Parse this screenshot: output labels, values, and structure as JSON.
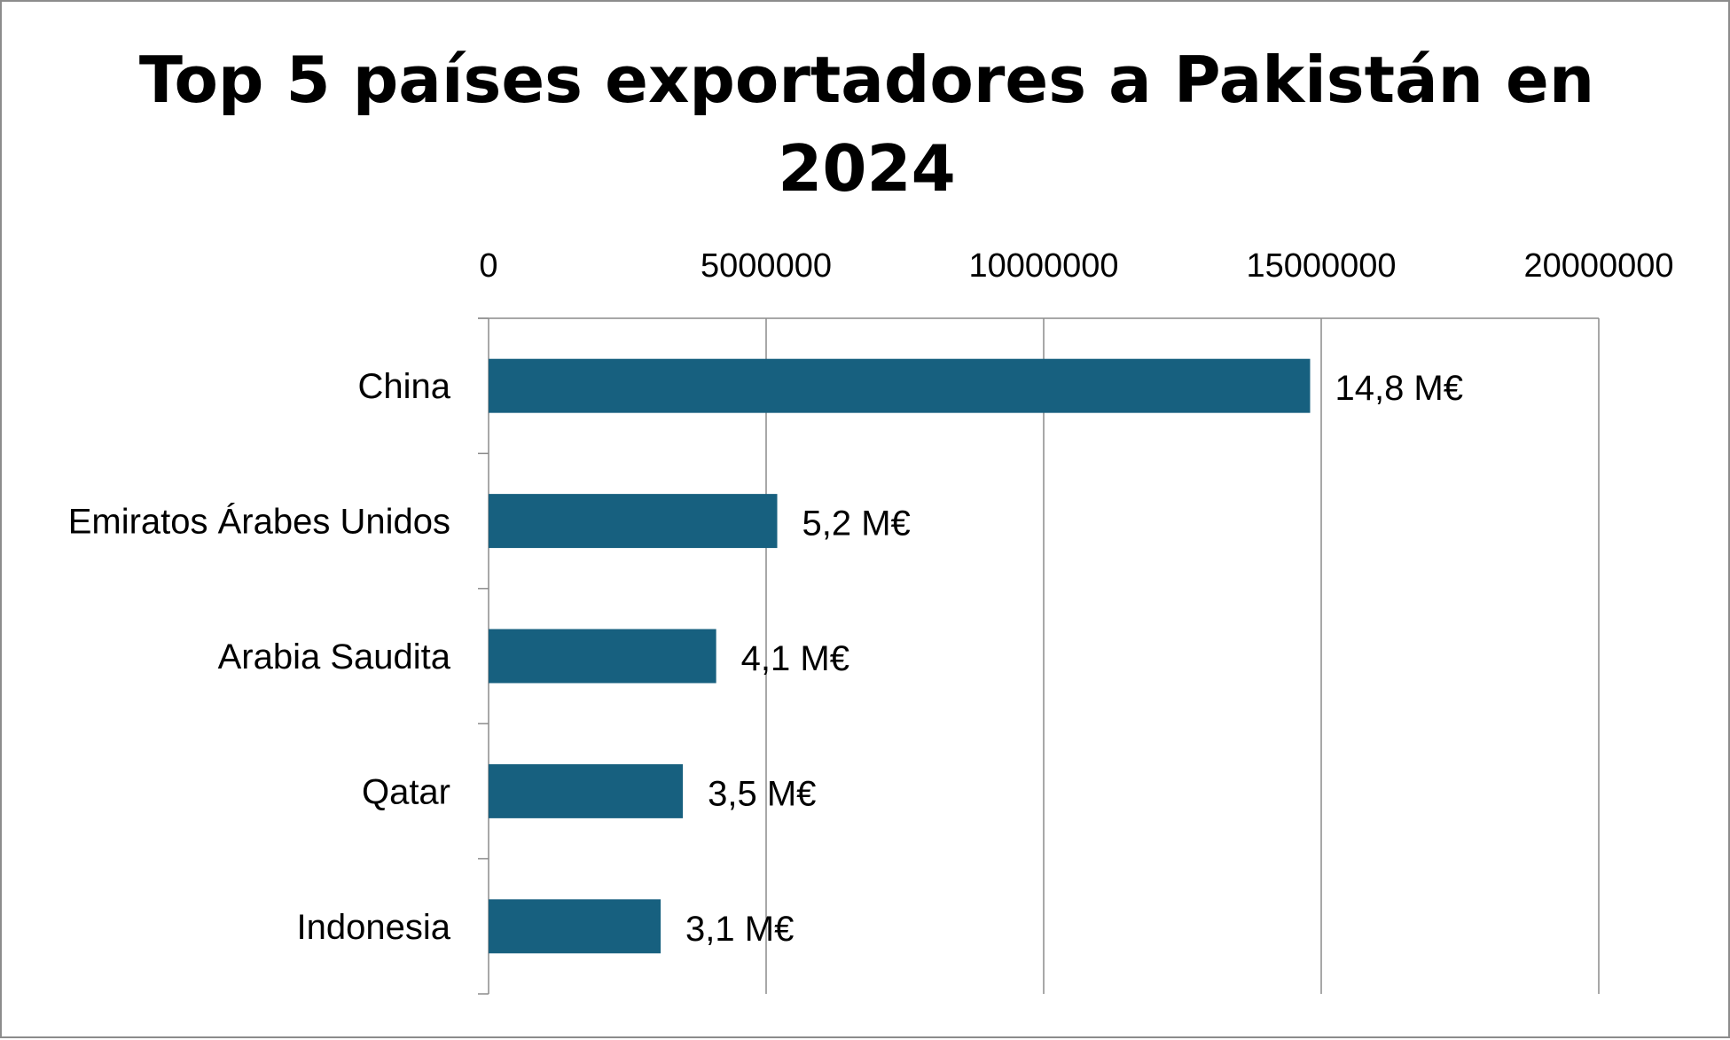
{
  "chart_data": {
    "type": "bar",
    "orientation": "horizontal",
    "title": "Top 5 países exportadores a Pakistán en 2024",
    "categories": [
      "China",
      "Emiratos Árabes Unidos",
      "Arabia Saudita",
      "Qatar",
      "Indonesia"
    ],
    "values": [
      14800000,
      5200000,
      4100000,
      3500000,
      3100000
    ],
    "data_labels": [
      "14,8 M€",
      "5,2 M€",
      "4,1 M€",
      "3,5 M€",
      "3,1 M€"
    ],
    "xlim": [
      0,
      20000000
    ],
    "x_ticks": [
      0,
      5000000,
      10000000,
      15000000,
      20000000
    ],
    "x_tick_labels": [
      "0",
      "5000000",
      "10000000",
      "15000000",
      "20000000"
    ],
    "x_axis_position": "top",
    "grid": "vertical",
    "legend": "none",
    "colors": {
      "bar": "#17607f",
      "grid": "#8c8c8c",
      "text": "#000000"
    }
  }
}
